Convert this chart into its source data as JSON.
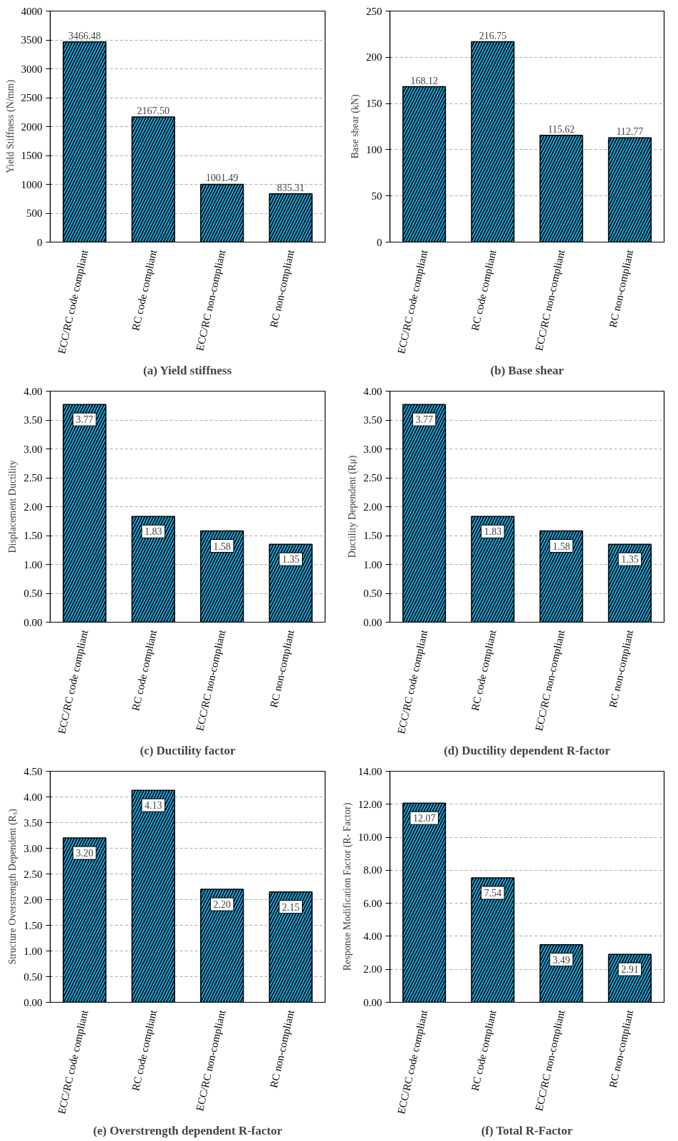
{
  "chart_data": [
    {
      "type": "bar",
      "title": "(a) Yield stiffness",
      "ylabel": "Yield Stiffness (N/mm)",
      "categories": [
        "ECC/RC code compliant",
        "RC code compliant",
        "ECC/RC non-compliant",
        "RC non-compliant"
      ],
      "values": [
        3466.48,
        2167.5,
        1001.49,
        835.31
      ],
      "value_labels": [
        "3466.48",
        "2167.50",
        "1001.49",
        "835.31"
      ],
      "color": "#1aa7dc",
      "ylim": [
        0,
        4000
      ],
      "yticks": [
        0,
        500,
        1000,
        1500,
        2000,
        2500,
        3000,
        3500,
        4000
      ],
      "grid": "y"
    },
    {
      "type": "bar",
      "title": "(b) Base shear",
      "ylabel": "Base shear (kN)",
      "categories": [
        "ECC/RC code compliant",
        "RC code compliant",
        "ECC/RC non-compliant",
        "RC non-compliant"
      ],
      "values": [
        168.12,
        216.75,
        115.62,
        112.77
      ],
      "value_labels": [
        "168.12",
        "216.75",
        "115.62",
        "112.77"
      ],
      "color": "#1aa7dc",
      "ylim": [
        0,
        250
      ],
      "yticks": [
        0,
        50,
        100,
        150,
        200,
        250
      ],
      "grid": "y"
    },
    {
      "type": "bar",
      "title": "(c) Ductility factor",
      "ylabel": "Displacement Ductility",
      "categories": [
        "ECC/RC code compliant",
        "RC code compliant",
        "ECC/RC non-compliant",
        "RC non-compliant"
      ],
      "values": [
        3.77,
        1.83,
        1.58,
        1.35
      ],
      "value_labels": [
        "3.77",
        "1.83",
        "1.58",
        "1.35"
      ],
      "color": "#1aa7dc",
      "ylim": [
        0,
        4
      ],
      "yticks": [
        {
          "value": 0,
          "label": "0.00"
        },
        {
          "value": 0.5,
          "label": "0.50"
        },
        {
          "value": 1,
          "label": "1.00"
        },
        {
          "value": 1.5,
          "label": "1.50"
        },
        {
          "value": 2,
          "label": "2.00"
        },
        {
          "value": 2.5,
          "label": "2.50"
        },
        {
          "value": 3,
          "label": "3.00"
        },
        {
          "value": 3.5,
          "label": "3.50"
        },
        {
          "value": 4,
          "label": "4.00"
        }
      ],
      "grid": "y"
    },
    {
      "type": "bar",
      "title": "(d) Ductility dependent R-factor",
      "ylabel": "Ductility Dependent (Rμ)",
      "categories": [
        "ECC/RC code compliant",
        "RC code compliant",
        "ECC/RC non-compliant",
        "RC non-compliant"
      ],
      "values": [
        3.77,
        1.83,
        1.58,
        1.35
      ],
      "value_labels": [
        "3.77",
        "1.83",
        "1.58",
        "1.35"
      ],
      "color": "#1aa7dc",
      "ylim": [
        0,
        4
      ],
      "yticks": [
        {
          "value": 0,
          "label": "0.00"
        },
        {
          "value": 0.5,
          "label": "0.50"
        },
        {
          "value": 1,
          "label": "1.00"
        },
        {
          "value": 1.5,
          "label": "1.50"
        },
        {
          "value": 2,
          "label": "2.00"
        },
        {
          "value": 2.5,
          "label": "2.50"
        },
        {
          "value": 3,
          "label": "3.00"
        },
        {
          "value": 3.5,
          "label": "3.50"
        },
        {
          "value": 4,
          "label": "4.00"
        }
      ],
      "grid": "y"
    },
    {
      "type": "bar",
      "title": "(e) Overstrength dependent R-factor",
      "ylabel": "Structure Overstrength Dependent (Rₛ)",
      "categories": [
        "ECC/RC code compliant",
        "RC code compliant",
        "ECC/RC non-compliant",
        "RC non-compliant"
      ],
      "values": [
        3.2,
        4.13,
        2.2,
        2.15
      ],
      "value_labels": [
        "3.20",
        "4.13",
        "2.20",
        "2.15"
      ],
      "color": "#1aa7dc",
      "ylim": [
        0,
        4.5
      ],
      "yticks": [
        {
          "value": 0,
          "label": "0.00"
        },
        {
          "value": 0.5,
          "label": "0.50"
        },
        {
          "value": 1,
          "label": "1.00"
        },
        {
          "value": 1.5,
          "label": "1.50"
        },
        {
          "value": 2,
          "label": "2.00"
        },
        {
          "value": 2.5,
          "label": "2.50"
        },
        {
          "value": 3,
          "label": "3.00"
        },
        {
          "value": 3.5,
          "label": "3.50"
        },
        {
          "value": 4,
          "label": "4.00"
        },
        {
          "value": 4.5,
          "label": "4.50"
        }
      ],
      "grid": "y"
    },
    {
      "type": "bar",
      "title": "(f) Total R-Factor",
      "ylabel": "Response Modification Factor (R- Factor)",
      "categories": [
        "ECC/RC code compliant",
        "RC code compliant",
        "ECC/RC non-compliant",
        "RC non-compliant"
      ],
      "values": [
        12.07,
        7.54,
        3.49,
        2.91
      ],
      "value_labels": [
        "12.07",
        "7.54",
        "3.49",
        "2.91"
      ],
      "color": "#1aa7dc",
      "ylim": [
        0,
        14
      ],
      "yticks": [
        {
          "value": 0,
          "label": "0.00"
        },
        {
          "value": 2,
          "label": "2.00"
        },
        {
          "value": 4,
          "label": "4.00"
        },
        {
          "value": 6,
          "label": "6.00"
        },
        {
          "value": 8,
          "label": "8.00"
        },
        {
          "value": 10,
          "label": "10.00"
        },
        {
          "value": 12,
          "label": "12.00"
        },
        {
          "value": 14,
          "label": "14.00"
        }
      ],
      "grid": "y"
    }
  ]
}
